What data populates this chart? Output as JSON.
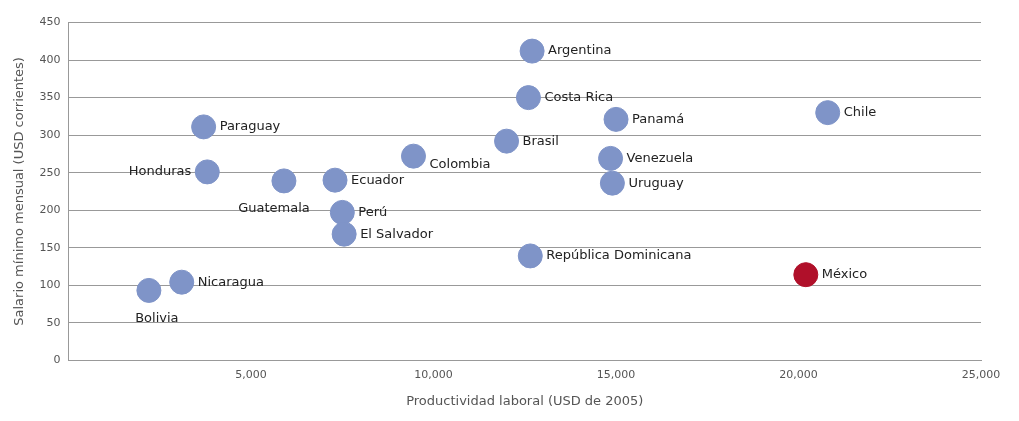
{
  "chart_data": {
    "type": "scatter",
    "xlabel": "Productividad laboral (USD de 2005)",
    "ylabel": "Salario mínimo mensual (USD corrientes)",
    "x": [
      12700,
      12600,
      15000,
      20800,
      3700,
      12000,
      9450,
      14850,
      3800,
      5900,
      7300,
      14900,
      7500,
      7550,
      12650,
      20200,
      3100,
      2200
    ],
    "values": [
      412,
      350,
      321,
      330,
      311,
      292,
      272,
      269,
      251,
      239,
      240,
      236,
      197,
      168,
      139,
      114,
      104,
      93
    ],
    "colors": [
      "#7f94c8",
      "#7f94c8",
      "#7f94c8",
      "#7f94c8",
      "#7f94c8",
      "#7f94c8",
      "#7f94c8",
      "#7f94c8",
      "#7f94c8",
      "#7f94c8",
      "#7f94c8",
      "#7f94c8",
      "#7f94c8",
      "#7f94c8",
      "#7f94c8",
      "#b0102a",
      "#7f94c8",
      "#7f94c8"
    ],
    "xlim": [
      0,
      25000
    ],
    "xticks": [
      {
        "value": 5000,
        "label": "5,000"
      },
      {
        "value": 10000,
        "label": "10,000"
      },
      {
        "value": 15000,
        "label": "15,000"
      },
      {
        "value": 20000,
        "label": "20,000"
      },
      {
        "value": 25000,
        "label": "25,000"
      }
    ],
    "ylim": [
      0,
      450
    ],
    "yticks": [
      0,
      50,
      100,
      150,
      200,
      250,
      300,
      350,
      400,
      450
    ],
    "grid": "y",
    "legend": false,
    "marker": "circle",
    "annotations": [
      {
        "text": "Argentina",
        "x": 12700,
        "y": 412
      },
      {
        "text": "Costa Rica",
        "x": 12600,
        "y": 350
      },
      {
        "text": "Panamá",
        "x": 15000,
        "y": 321
      },
      {
        "text": "Chile",
        "x": 20800,
        "y": 330
      },
      {
        "text": "Paraguay",
        "x": 3700,
        "y": 311
      },
      {
        "text": "Brasil",
        "x": 12000,
        "y": 292
      },
      {
        "text": "Colombia",
        "x": 9450,
        "y": 272
      },
      {
        "text": "Venezuela",
        "x": 14850,
        "y": 269
      },
      {
        "text": "Honduras",
        "x": 3800,
        "y": 251
      },
      {
        "text": "Guatemala",
        "x": 5900,
        "y": 239
      },
      {
        "text": "Ecuador",
        "x": 7300,
        "y": 240
      },
      {
        "text": "Uruguay",
        "x": 14900,
        "y": 236
      },
      {
        "text": "Perú",
        "x": 7500,
        "y": 197
      },
      {
        "text": "El Salvador",
        "x": 7550,
        "y": 168
      },
      {
        "text": "República Dominicana",
        "x": 12650,
        "y": 139
      },
      {
        "text": "México",
        "x": 20200,
        "y": 114
      },
      {
        "text": "Nicaragua",
        "x": 3100,
        "y": 104
      },
      {
        "text": "Bolivia",
        "x": 2200,
        "y": 93
      }
    ]
  }
}
